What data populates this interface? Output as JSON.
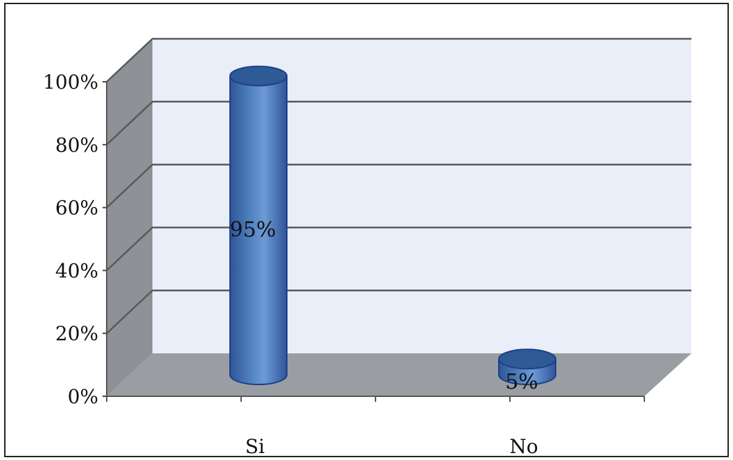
{
  "chart_data": {
    "type": "bar",
    "style": "3d-cylinder",
    "categories": [
      "Si",
      "No"
    ],
    "values": [
      95,
      5
    ],
    "data_labels": [
      "95%",
      "5%"
    ],
    "yticks": [
      "0%",
      "20%",
      "40%",
      "60%",
      "80%",
      "100%"
    ],
    "ylim": [
      0,
      100
    ],
    "grid": true,
    "legend": "none",
    "colors": {
      "bar": "#4f81bd",
      "bar_dark": "#2f5597",
      "bar_top": "#2e5a96",
      "back_wall": "#e9eef8",
      "side_wall": "#8e9297",
      "floor": "#9a9ea3",
      "grid": "#595959"
    }
  }
}
